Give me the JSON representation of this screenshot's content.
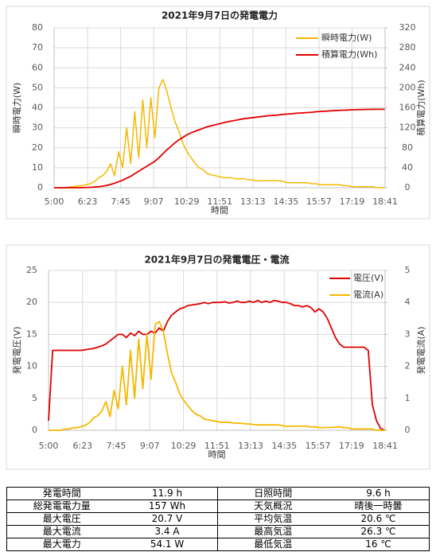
{
  "chart_data": [
    {
      "type": "line",
      "title": "2021年9月7日の発電電力",
      "xlabel": "時間",
      "ylabel": "瞬時電力(W)",
      "y2label": "積算電力(Wh)",
      "x": [
        "5:00",
        "5:10",
        "5:20",
        "5:30",
        "5:40",
        "5:50",
        "6:00",
        "6:10",
        "6:20",
        "6:30",
        "6:40",
        "6:50",
        "7:00",
        "7:10",
        "7:20",
        "7:30",
        "7:40",
        "7:50",
        "8:00",
        "8:10",
        "8:20",
        "8:30",
        "8:40",
        "8:50",
        "9:00",
        "9:10",
        "9:20",
        "9:30",
        "9:40",
        "9:50",
        "10:00",
        "10:10",
        "10:20",
        "10:30",
        "10:40",
        "10:50",
        "11:00",
        "11:10",
        "11:20",
        "11:30",
        "11:40",
        "11:50",
        "12:00",
        "12:10",
        "12:20",
        "12:30",
        "12:40",
        "12:50",
        "13:00",
        "13:10",
        "13:20",
        "13:30",
        "13:40",
        "13:50",
        "14:00",
        "14:10",
        "14:20",
        "14:30",
        "14:40",
        "14:50",
        "15:00",
        "15:10",
        "15:20",
        "15:30",
        "15:40",
        "15:50",
        "16:00",
        "16:10",
        "16:20",
        "16:30",
        "16:40",
        "16:50",
        "17:00",
        "17:10",
        "17:20",
        "17:30",
        "17:40",
        "17:50",
        "18:00",
        "18:10",
        "18:20",
        "18:30",
        "18:40"
      ],
      "series": [
        {
          "name": "瞬時電力(W)",
          "color": "#F5B800",
          "values": [
            0,
            0,
            0,
            0,
            0.5,
            0.5,
            1,
            1,
            1.5,
            2,
            3,
            5,
            6,
            8,
            12,
            6,
            18,
            10,
            30,
            12,
            38,
            15,
            44,
            20,
            45,
            25,
            50,
            54.1,
            48,
            40,
            33,
            28,
            22,
            18,
            15,
            12,
            10,
            9,
            7,
            6.5,
            6,
            5.5,
            5,
            5,
            5,
            4.5,
            4.5,
            4.5,
            4,
            4,
            3.5,
            3.5,
            3.5,
            3.5,
            3.5,
            3.5,
            3.5,
            3,
            2.5,
            2.5,
            2.5,
            2.5,
            2.5,
            2.5,
            2,
            2,
            1.5,
            1.5,
            1.5,
            1.5,
            1.5,
            1.5,
            1,
            1,
            0.5,
            0.5,
            0.5,
            0.5,
            0.5,
            0.5,
            0,
            0,
            0
          ]
        },
        {
          "name": "積算電力(Wh)",
          "color": "#E00000",
          "axis": "y2",
          "values": [
            0,
            0,
            0,
            0,
            0,
            0,
            0,
            0.2,
            0.4,
            0.8,
            1.3,
            2,
            3,
            4.5,
            6.5,
            9,
            12,
            15,
            19,
            23,
            28,
            33,
            38,
            43,
            48,
            53,
            60,
            68,
            76,
            83,
            90,
            96,
            101,
            106,
            110,
            113,
            116,
            119,
            122,
            124,
            126,
            128,
            130,
            132,
            133.5,
            135,
            136.5,
            138,
            139,
            140,
            141,
            142,
            143,
            144,
            144.5,
            145,
            146,
            147,
            147.5,
            148,
            149,
            149.5,
            150,
            150.5,
            151,
            152,
            152.5,
            153,
            153.5,
            154,
            154.5,
            155,
            155.2,
            155.5,
            156,
            156.2,
            156.4,
            156.6,
            156.8,
            156.9,
            157,
            157,
            157
          ]
        }
      ],
      "xlim": [
        "5:00",
        "18:41"
      ],
      "xticks": [
        "5:00",
        "6:23",
        "7:45",
        "9:07",
        "10:29",
        "11:51",
        "13:13",
        "14:35",
        "15:57",
        "17:19",
        "18:41"
      ],
      "ylim": [
        0,
        80
      ],
      "yticks": [
        0,
        10,
        20,
        30,
        40,
        50,
        60,
        70,
        80
      ],
      "y2lim": [
        0,
        320
      ],
      "y2ticks": [
        0,
        40,
        80,
        120,
        160,
        200,
        240,
        280,
        320
      ],
      "grid": true,
      "legend": "upper right"
    },
    {
      "type": "line",
      "title": "2021年9月7日の発電電圧・電流",
      "xlabel": "時間",
      "ylabel": "発電電圧(V)",
      "y2label": "発電電流(A)",
      "x": [
        "5:00",
        "5:10",
        "5:20",
        "5:30",
        "5:40",
        "5:50",
        "6:00",
        "6:10",
        "6:20",
        "6:30",
        "6:40",
        "6:50",
        "7:00",
        "7:10",
        "7:20",
        "7:30",
        "7:40",
        "7:50",
        "8:00",
        "8:10",
        "8:20",
        "8:30",
        "8:40",
        "8:50",
        "9:00",
        "9:10",
        "9:20",
        "9:30",
        "9:40",
        "9:50",
        "10:00",
        "10:10",
        "10:20",
        "10:30",
        "10:40",
        "10:50",
        "11:00",
        "11:10",
        "11:20",
        "11:30",
        "11:40",
        "11:50",
        "12:00",
        "12:10",
        "12:20",
        "12:30",
        "12:40",
        "12:50",
        "13:00",
        "13:10",
        "13:20",
        "13:30",
        "13:40",
        "13:50",
        "14:00",
        "14:10",
        "14:20",
        "14:30",
        "14:40",
        "14:50",
        "15:00",
        "15:10",
        "15:20",
        "15:30",
        "15:40",
        "15:50",
        "16:00",
        "16:10",
        "16:20",
        "16:30",
        "16:40",
        "16:50",
        "17:00",
        "17:10",
        "17:20",
        "17:30",
        "17:40",
        "17:50",
        "18:00",
        "18:10",
        "18:20",
        "18:30",
        "18:40"
      ],
      "series": [
        {
          "name": "電圧(V)",
          "color": "#E00000",
          "values": [
            1.5,
            12.5,
            12.5,
            12.5,
            12.5,
            12.5,
            12.5,
            12.5,
            12.5,
            12.6,
            12.7,
            12.8,
            13,
            13.2,
            13.5,
            14,
            14.5,
            15,
            15,
            14.5,
            15.2,
            14.8,
            15.5,
            15,
            15,
            15.5,
            15.2,
            16,
            15.5,
            17,
            18,
            18.5,
            19,
            19.2,
            19.5,
            19.6,
            19.7,
            19.8,
            20,
            19.8,
            20,
            20,
            20,
            20.1,
            19.9,
            20,
            20.2,
            20,
            20,
            20.2,
            20,
            20.3,
            20,
            20.2,
            20,
            20.3,
            20.2,
            20,
            20,
            19.8,
            19.5,
            19.5,
            19.3,
            19.5,
            19.2,
            18.5,
            19,
            18.5,
            17.5,
            16,
            14.5,
            13.5,
            13,
            13,
            13,
            13,
            13,
            13,
            12.5,
            4,
            1.5,
            0.3,
            0
          ]
        },
        {
          "name": "電流(A)",
          "color": "#F5B800",
          "axis": "y2",
          "values": [
            0,
            0,
            0,
            0,
            0.04,
            0.04,
            0.08,
            0.08,
            0.12,
            0.16,
            0.24,
            0.39,
            0.46,
            0.6,
            0.9,
            0.43,
            1.25,
            0.67,
            2,
            0.8,
            2.5,
            1,
            2.85,
            1.3,
            3,
            1.6,
            3.3,
            3.4,
            3.1,
            2.4,
            1.8,
            1.5,
            1.15,
            0.93,
            0.77,
            0.61,
            0.5,
            0.45,
            0.35,
            0.33,
            0.3,
            0.28,
            0.25,
            0.25,
            0.25,
            0.23,
            0.22,
            0.22,
            0.2,
            0.2,
            0.18,
            0.17,
            0.17,
            0.17,
            0.17,
            0.17,
            0.17,
            0.15,
            0.12,
            0.13,
            0.13,
            0.13,
            0.13,
            0.13,
            0.1,
            0.11,
            0.08,
            0.08,
            0.09,
            0.09,
            0.1,
            0.11,
            0.08,
            0.08,
            0.04,
            0.04,
            0.04,
            0.04,
            0.04,
            0.04,
            0,
            0,
            0
          ]
        }
      ],
      "xlim": [
        "5:00",
        "18:41"
      ],
      "xticks": [
        "5:00",
        "6:23",
        "7:45",
        "9:07",
        "10:29",
        "11:51",
        "13:13",
        "14:35",
        "15:57",
        "17:19",
        "18:41"
      ],
      "ylim": [
        0,
        25
      ],
      "yticks": [
        0,
        5,
        10,
        15,
        20,
        25
      ],
      "y2lim": [
        0,
        5
      ],
      "y2ticks": [
        0,
        1,
        2,
        3,
        4,
        5
      ],
      "grid": true,
      "legend": "upper right"
    }
  ],
  "table": {
    "rows": [
      [
        "発電時間",
        "11.9 h",
        "日照時間",
        "9.6 h"
      ],
      [
        "総発電電力量",
        "157 Wh",
        "天気概況",
        "晴後一時曇"
      ],
      [
        "最大電圧",
        "20.7 V",
        "平均気温",
        "20.6 ℃"
      ],
      [
        "最大電流",
        "3.4 A",
        "最高気温",
        "26.3 ℃"
      ],
      [
        "最大電力",
        "54.1 W",
        "最低気温",
        "16 ℃"
      ]
    ]
  }
}
